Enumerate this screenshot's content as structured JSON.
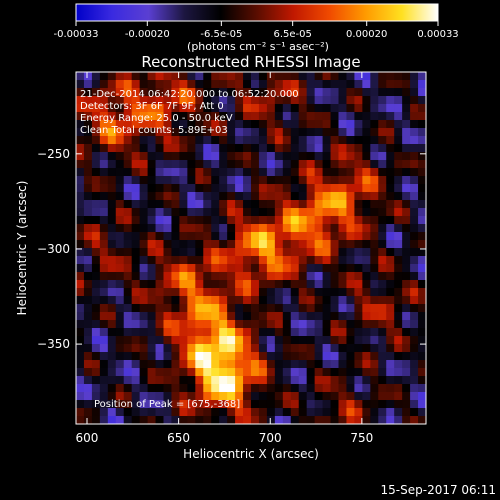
{
  "chart_data": {
    "type": "heatmap",
    "title": "Reconstructed RHESSI Image",
    "xlabel": "Heliocentric X (arcsec)",
    "ylabel": "Heliocentric Y (arcsec)",
    "xlim": [
      594,
      785
    ],
    "ylim": [
      -392,
      -207
    ],
    "x_ticks": [
      600,
      650,
      700,
      750
    ],
    "y_ticks": [
      -250,
      -300,
      -350
    ],
    "colorbar": {
      "unit_label": "(photons cm⁻² s⁻¹ asec⁻²)",
      "range": [
        -0.00033,
        0.00033
      ],
      "tick_labels": [
        "-0.00033",
        "-0.00020",
        "-6.5e-05",
        "6.5e-05",
        "0.00020",
        "0.00033"
      ],
      "tick_values": [
        -0.00033,
        -0.0002,
        -6.5e-05,
        6.5e-05,
        0.0002,
        0.00033
      ],
      "colors": [
        "#0000c8",
        "#3a2ae0",
        "#5a3fd2",
        "#1c1640",
        "#000000",
        "#5a0d00",
        "#c01800",
        "#f04a00",
        "#ff9a00",
        "#ffe020",
        "#ffffff"
      ]
    },
    "annotations": [
      "21-Dec-2014 06:42:20.000 to 06:52:20.000",
      "Detectors: 3F 6F 7F 9F, Att 0",
      "Energy Range: 25.0 - 50.0 keV",
      "Clean     Total counts: 5.89E+03"
    ],
    "peak_label": "Position of Peak = [675,-368]",
    "peak": [
      675,
      -368
    ],
    "sources": [
      {
        "x": 675,
        "y": -368,
        "value": 0.00033
      },
      {
        "x": 668,
        "y": -345,
        "value": 0.00024
      },
      {
        "x": 655,
        "y": -318,
        "value": 0.00018
      },
      {
        "x": 695,
        "y": -300,
        "value": 0.00026
      },
      {
        "x": 725,
        "y": -285,
        "value": 0.00022
      },
      {
        "x": 745,
        "y": -268,
        "value": 0.00016
      },
      {
        "x": 615,
        "y": -232,
        "value": 0.0002
      },
      {
        "x": 645,
        "y": -222,
        "value": 0.00017
      },
      {
        "x": 700,
        "y": -220,
        "value": 0.00012
      },
      {
        "x": 760,
        "y": -330,
        "value": 0.00011
      },
      {
        "x": 740,
        "y": -385,
        "value": 0.0001
      },
      {
        "x": 610,
        "y": -300,
        "value": 9e-05
      }
    ]
  },
  "footer": {
    "timestamp": "15-Sep-2017 06:11"
  }
}
